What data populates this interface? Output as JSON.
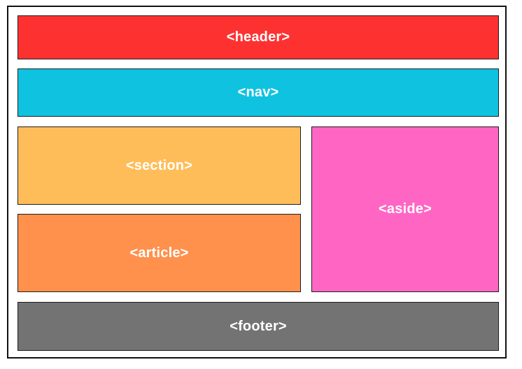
{
  "blocks": {
    "header": {
      "label": "<header>",
      "color": "#fe3131"
    },
    "nav": {
      "label": "<nav>",
      "color": "#0fc3e0"
    },
    "section": {
      "label": "<section>",
      "color": "#ffbd59"
    },
    "article": {
      "label": "<article>",
      "color": "#ff914d"
    },
    "aside": {
      "label": "<aside>",
      "color": "#ff66c4"
    },
    "footer": {
      "label": "<footer>",
      "color": "#737373"
    }
  }
}
